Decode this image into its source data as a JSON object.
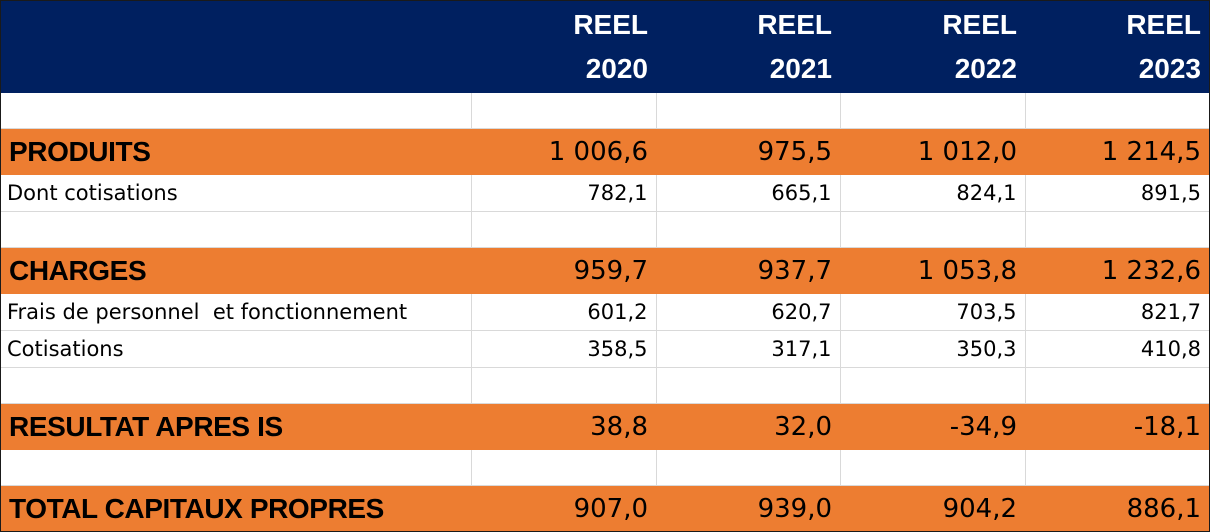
{
  "header": {
    "columns": [
      {
        "line1": "REEL",
        "line2": "2020"
      },
      {
        "line1": "REEL",
        "line2": "2021"
      },
      {
        "line1": "REEL",
        "line2": "2022"
      },
      {
        "line1": "REEL",
        "line2": "2023"
      }
    ]
  },
  "rows": {
    "produits": {
      "label": "PRODUITS",
      "values": [
        "1 006,6",
        "975,5",
        "1 012,0",
        "1 214,5"
      ]
    },
    "dont_cotisations": {
      "label": "Dont cotisations",
      "values": [
        "782,1",
        "665,1",
        "824,1",
        "891,5"
      ]
    },
    "charges": {
      "label": "CHARGES",
      "values": [
        "959,7",
        "937,7",
        "1 053,8",
        "1 232,6"
      ]
    },
    "frais": {
      "label": "Frais de personnel  et fonctionnement",
      "values": [
        "601,2",
        "620,7",
        "703,5",
        "821,7"
      ]
    },
    "cotisations": {
      "label": "Cotisations",
      "values": [
        "358,5",
        "317,1",
        "350,3",
        "410,8"
      ]
    },
    "resultat": {
      "label": "RESULTAT APRES IS",
      "values": [
        "38,8",
        "32,0",
        "-34,9",
        "-18,1"
      ]
    },
    "capitaux": {
      "label": "TOTAL CAPITAUX PROPRES",
      "values": [
        "907,0",
        "939,0",
        "904,2",
        "886,1"
      ]
    }
  },
  "colors": {
    "header_bg": "#002060",
    "category_bg": "#ed7d31"
  }
}
